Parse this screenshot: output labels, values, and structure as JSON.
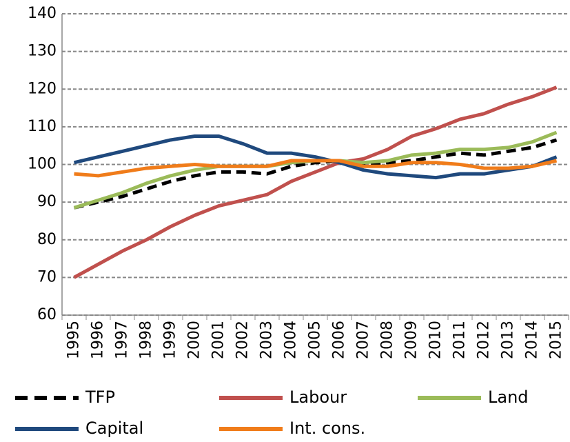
{
  "chart_data": {
    "type": "line",
    "categories": [
      "1995",
      "1996",
      "1997",
      "1998",
      "1999",
      "2000",
      "2001",
      "2002",
      "2003",
      "2004",
      "2005",
      "2006",
      "2007",
      "2008",
      "2009",
      "2010",
      "2011",
      "2012",
      "2013",
      "2014",
      "2015"
    ],
    "series": [
      {
        "name": "TFP",
        "color": "#000000",
        "dashed": true,
        "values": [
          88.5,
          90,
          91.5,
          93.5,
          95.5,
          97,
          98,
          98,
          97.5,
          99.5,
          100.5,
          101,
          100,
          100.5,
          101,
          102,
          103,
          102.5,
          103.5,
          104.5,
          106.5
        ]
      },
      {
        "name": "Labour",
        "color": "#c0504d",
        "values": [
          70,
          73.5,
          77,
          80,
          83.5,
          86.5,
          89,
          90.5,
          92,
          95.5,
          98,
          100.5,
          101.5,
          104,
          107.5,
          109.5,
          112,
          113.5,
          116,
          118,
          120.5
        ]
      },
      {
        "name": "Land",
        "color": "#9bbb59",
        "values": [
          88.5,
          90.5,
          92.5,
          95,
          97,
          98.5,
          99.5,
          99.5,
          99.5,
          100.5,
          101,
          101,
          100.5,
          101,
          102.5,
          103,
          104,
          104,
          104.5,
          106,
          108.5
        ]
      },
      {
        "name": "Capital",
        "color": "#1f497d",
        "values": [
          100.5,
          102,
          103.5,
          105,
          106.5,
          107.5,
          107.5,
          105.5,
          103,
          103,
          102,
          100.5,
          98.5,
          97.5,
          97,
          96.5,
          97.5,
          97.5,
          98.5,
          99.5,
          102
        ]
      },
      {
        "name": "Int. cons.",
        "color": "#f07c1a",
        "values": [
          97.5,
          97,
          98,
          99,
          99.5,
          100,
          99.5,
          99.5,
          99.5,
          101,
          101,
          101,
          99.5,
          99.5,
          100.5,
          100.5,
          100,
          99,
          99,
          99.5,
          101
        ]
      }
    ],
    "ylim": [
      60,
      140
    ],
    "yticks": [
      60,
      70,
      80,
      90,
      100,
      110,
      120,
      130,
      140
    ],
    "grid": true
  }
}
